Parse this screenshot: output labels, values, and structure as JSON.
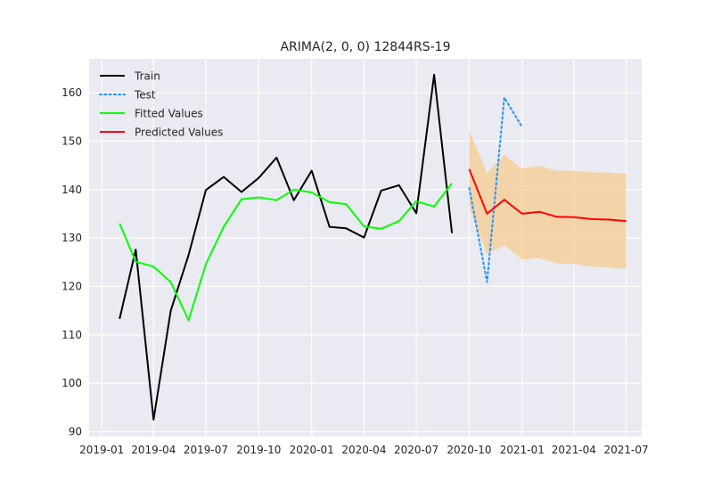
{
  "chart_data": {
    "type": "line",
    "title": "ARIMA(2, 0, 0) 12844RS-19",
    "xlabel": "",
    "ylabel": "",
    "x_range": [
      "2018-12-10",
      "2021-07-28"
    ],
    "ylim": [
      89,
      167
    ],
    "grid": true,
    "legend_position": "top-left",
    "x_tick_labels": [
      "2019-01",
      "2019-04",
      "2019-07",
      "2019-10",
      "2020-01",
      "2020-04",
      "2020-07",
      "2020-10",
      "2021-01",
      "2021-04",
      "2021-07"
    ],
    "x_ticks": [
      "2019-01-01",
      "2019-04-01",
      "2019-07-01",
      "2019-10-01",
      "2020-01-01",
      "2020-04-01",
      "2020-07-01",
      "2020-10-01",
      "2021-01-01",
      "2021-04-01",
      "2021-07-01"
    ],
    "y_ticks": [
      90,
      100,
      110,
      120,
      130,
      140,
      150,
      160
    ],
    "series": [
      {
        "name": "Train",
        "style": "solid",
        "color": "#000000",
        "x": [
          "2019-02-01",
          "2019-03-01",
          "2019-04-01",
          "2019-05-01",
          "2019-06-01",
          "2019-07-01",
          "2019-08-01",
          "2019-09-01",
          "2019-10-01",
          "2019-11-01",
          "2019-12-01",
          "2020-01-01",
          "2020-02-01",
          "2020-03-01",
          "2020-04-01",
          "2020-05-01",
          "2020-06-01",
          "2020-07-01",
          "2020-08-01",
          "2020-09-01"
        ],
        "values": [
          113.3,
          127.6,
          92.5,
          115.0,
          126.5,
          139.9,
          142.6,
          139.5,
          142.4,
          146.6,
          137.8,
          143.9,
          132.3,
          132.0,
          130.1,
          139.8,
          140.9,
          135.1,
          163.7,
          131.0
        ]
      },
      {
        "name": "Test",
        "style": "dotted",
        "color": "#1e90ff",
        "x": [
          "2020-10-01",
          "2020-11-01",
          "2020-12-01",
          "2021-01-01"
        ],
        "values": [
          140.3,
          120.9,
          159.0,
          152.9
        ]
      },
      {
        "name": "Fitted Values",
        "style": "solid",
        "color": "#00ff00",
        "x": [
          "2019-02-01",
          "2019-03-01",
          "2019-04-01",
          "2019-05-01",
          "2019-06-01",
          "2019-07-01",
          "2019-08-01",
          "2019-09-01",
          "2019-10-01",
          "2019-11-01",
          "2019-12-01",
          "2020-01-01",
          "2020-02-01",
          "2020-03-01",
          "2020-04-01",
          "2020-05-01",
          "2020-06-01",
          "2020-07-01",
          "2020-08-01",
          "2020-09-01"
        ],
        "values": [
          133.0,
          125.1,
          124.1,
          120.9,
          113.0,
          124.6,
          132.3,
          138.0,
          138.4,
          137.8,
          140.0,
          139.4,
          137.4,
          137.0,
          132.4,
          131.9,
          133.5,
          137.6,
          136.5,
          141.3
        ]
      },
      {
        "name": "Predicted Values",
        "style": "solid",
        "color": "#ff0000",
        "x": [
          "2020-10-01",
          "2020-11-01",
          "2020-12-01",
          "2021-01-01",
          "2021-02-01",
          "2021-03-01",
          "2021-04-01",
          "2021-05-01",
          "2021-06-01",
          "2021-07-01"
        ],
        "values": [
          144.2,
          135.0,
          137.9,
          135.0,
          135.4,
          134.4,
          134.3,
          133.9,
          133.8,
          133.5
        ]
      }
    ],
    "confidence_band": {
      "color": "#f5cf9b",
      "x": [
        "2020-10-01",
        "2020-11-01",
        "2020-12-01",
        "2021-01-01",
        "2021-02-01",
        "2021-03-01",
        "2021-04-01",
        "2021-05-01",
        "2021-06-01",
        "2021-07-01"
      ],
      "lower": [
        136.2,
        126.6,
        128.5,
        125.6,
        125.8,
        124.8,
        124.6,
        124.1,
        123.9,
        123.6
      ],
      "upper": [
        152.2,
        143.4,
        147.2,
        144.3,
        144.9,
        143.9,
        143.9,
        143.6,
        143.5,
        143.3
      ]
    }
  },
  "colors": {
    "plot_background": "#eaeaf2",
    "grid": "#ffffff",
    "text": "#262626"
  }
}
